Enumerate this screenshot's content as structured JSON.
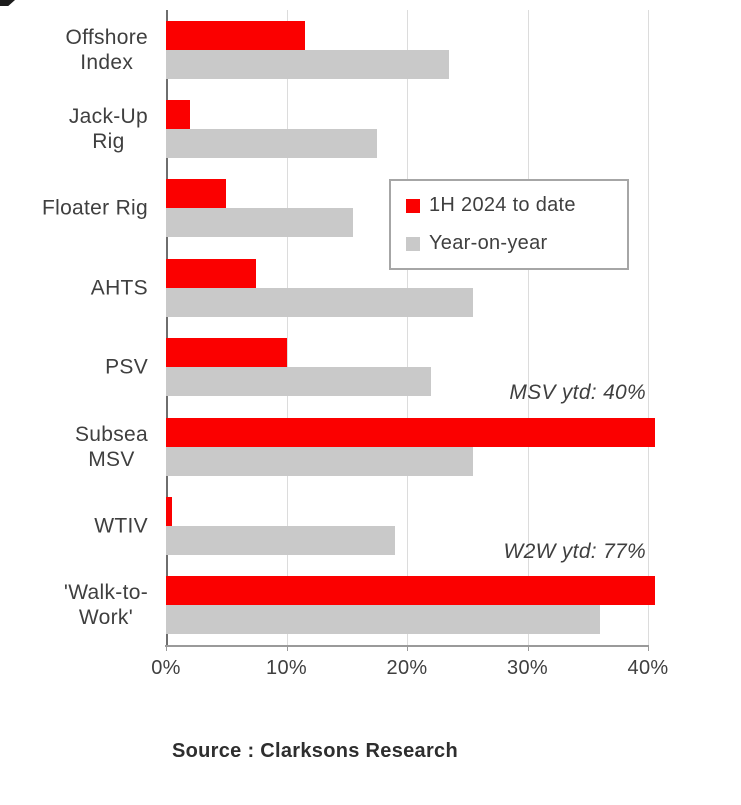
{
  "chart_data": {
    "type": "bar",
    "orientation": "horizontal",
    "title": "",
    "categories": [
      "Offshore Index",
      "Jack-Up Rig",
      "Floater Rig",
      "AHTS",
      "PSV",
      "Subsea MSV",
      "WTIV",
      "'Walk-to-Work'"
    ],
    "category_label_lines": [
      [
        "Offshore",
        "Index"
      ],
      [
        "Jack-Up",
        "Rig"
      ],
      [
        "Floater Rig"
      ],
      [
        "AHTS"
      ],
      [
        "PSV"
      ],
      [
        "Subsea",
        "MSV"
      ],
      [
        "WTIV"
      ],
      [
        "'Walk-to-",
        "Work'"
      ]
    ],
    "series": [
      {
        "name": "1H 2024 to date",
        "color": "#fb0000",
        "values": [
          11.5,
          2,
          5,
          7.5,
          10,
          40,
          0.5,
          77
        ]
      },
      {
        "name": "Year-on-year",
        "color": "#c9c9c9",
        "values": [
          23.5,
          17.5,
          15.5,
          25.5,
          22,
          25.5,
          19,
          36
        ]
      }
    ],
    "xlim": [
      0,
      40
    ],
    "xticks": [
      "0%",
      "10%",
      "20%",
      "30%",
      "40%"
    ],
    "grid": true,
    "legend_position": "inside upper right",
    "annotations": [
      {
        "text": "MSV ytd: 40%"
      },
      {
        "text": "W2W ytd: 77%"
      }
    ]
  },
  "source_label": "Source : Clarksons Research"
}
